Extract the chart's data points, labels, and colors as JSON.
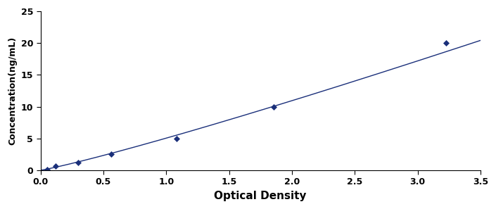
{
  "x_data": [
    0.051,
    0.118,
    0.298,
    0.562,
    1.08,
    1.856,
    3.224
  ],
  "y_data": [
    0.156,
    0.625,
    1.25,
    2.5,
    5.0,
    10.0,
    20.0
  ],
  "xlabel": "Optical Density",
  "ylabel": "Concentration(ng/mL)",
  "xlim": [
    0,
    3.5
  ],
  "ylim": [
    0,
    25
  ],
  "x_ticks": [
    0,
    0.5,
    1.0,
    1.5,
    2.0,
    2.5,
    3.0,
    3.5
  ],
  "y_ticks": [
    0,
    5,
    10,
    15,
    20,
    25
  ],
  "line_color": "#1a2f7a",
  "marker_color": "#1a2f7a",
  "marker_style": "D",
  "marker_size": 4,
  "line_style": "-",
  "line_width": 1.0,
  "background_color": "#ffffff",
  "xlabel_fontsize": 11,
  "ylabel_fontsize": 9,
  "tick_fontsize": 9,
  "tick_label_weight": "bold",
  "xlabel_weight": "bold",
  "ylabel_weight": "bold"
}
